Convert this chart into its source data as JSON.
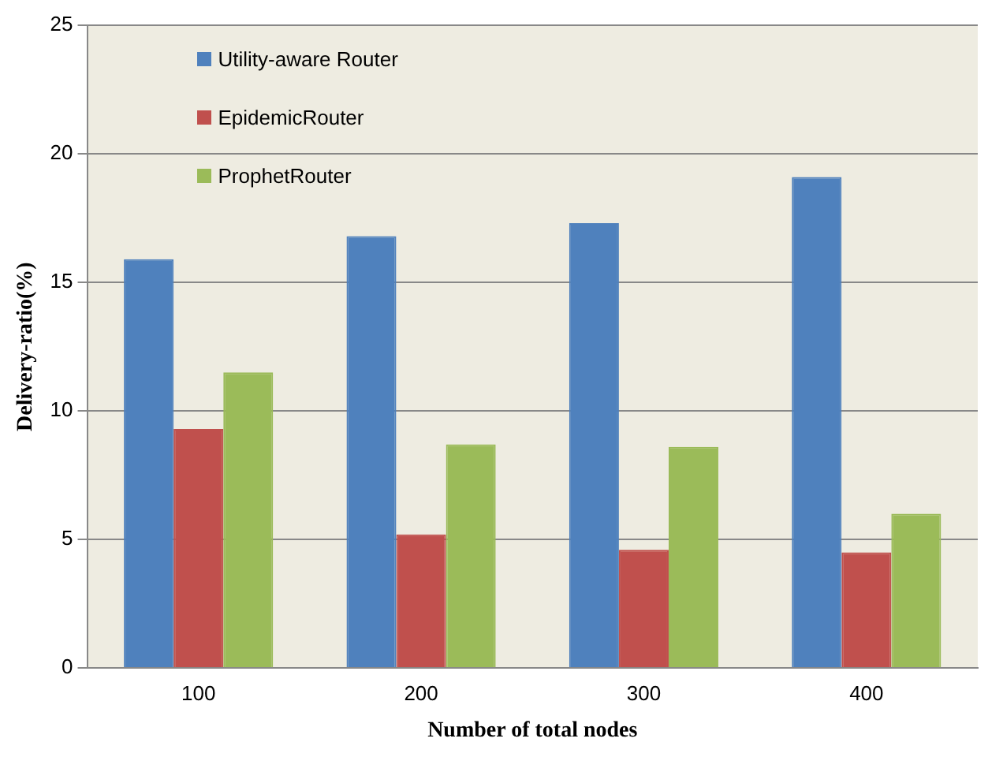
{
  "chart_data": {
    "type": "bar",
    "xlabel": "Number of total nodes",
    "ylabel": "Delivery-ratio(%)",
    "categories": [
      "100",
      "200",
      "300",
      "400"
    ],
    "series": [
      {
        "name": "Utility-aware Router",
        "color": "#4f81bd",
        "values": [
          15.9,
          16.8,
          17.3,
          19.1
        ]
      },
      {
        "name": "EpidemicRouter",
        "color": "#c0504d",
        "values": [
          9.3,
          5.2,
          4.6,
          4.5
        ]
      },
      {
        "name": "ProphetRouter",
        "color": "#9bbb59",
        "values": [
          11.5,
          8.7,
          8.6,
          6.0
        ]
      }
    ],
    "ylim": [
      0,
      25
    ],
    "yticks": [
      0,
      5,
      10,
      15,
      20,
      25
    ],
    "grid": "y",
    "legend": "top left"
  }
}
